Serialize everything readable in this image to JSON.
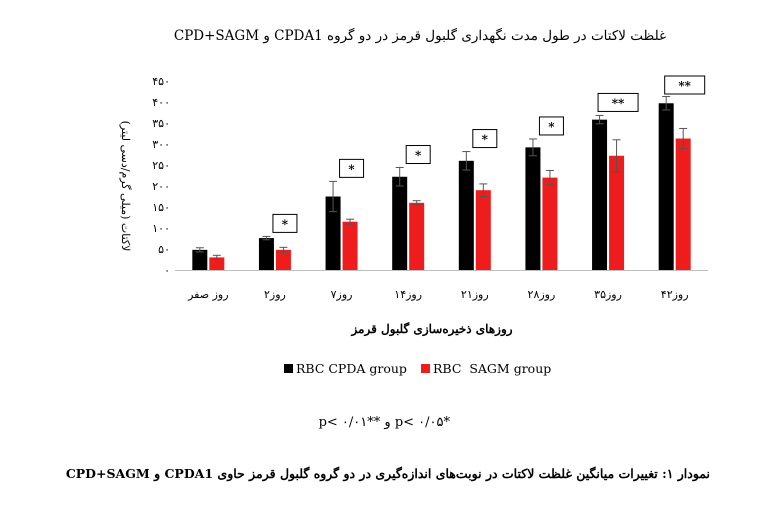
{
  "page": {
    "footnote": "*p< ۰/۰۵ و **p< ۰/۰۱",
    "caption": "نمودار ۱: تغییرات میانگین غلظت لاکتات در نوبت‌های اندازه‌گیری در دو گروه گلبول قرمز حاوی CPDA1 و CPD+SAGM"
  },
  "colors": {
    "cpda": "#000000",
    "sagm": "#ee1c1c",
    "axis": "#bfbfbf",
    "error_bar": "#555555"
  },
  "chart_data": {
    "type": "bar",
    "title": "غلظت لاکتات در طول مدت نگهداری گلبول قرمز در دو گروه CPDA1 و CPD+SAGM",
    "xlabel": "روزهای ذخیره‌سازی گلبول قرمز",
    "ylabel": "لاکتات (میلی گرم/دسی لیتر)",
    "ylim": [
      0,
      450
    ],
    "yticks": [
      0,
      50,
      100,
      150,
      200,
      250,
      300,
      350,
      400,
      450
    ],
    "ytick_labels": [
      "۰",
      "۵۰",
      "۱۰۰",
      "۱۵۰",
      "۲۰۰",
      "۲۵۰",
      "۳۰۰",
      "۳۵۰",
      "۴۰۰",
      "۴۵۰"
    ],
    "categories": [
      "روز صفر",
      "روز۲",
      "روز۷",
      "روز۱۴",
      "روز۲۱",
      "روز۲۸",
      "روز۳۵",
      "روز۴۲"
    ],
    "series": [
      {
        "name": "RBC CPDA group",
        "color": "#000000",
        "values": [
          48,
          76,
          175,
          222,
          260,
          292,
          358,
          397
        ],
        "errors": [
          5,
          4,
          36,
          22,
          22,
          20,
          10,
          16
        ]
      },
      {
        "name": "RBC  SAGM group",
        "color": "#ee1c1c",
        "values": [
          30,
          48,
          115,
          160,
          190,
          220,
          272,
          313
        ],
        "errors": [
          5,
          6,
          6,
          5,
          15,
          17,
          38,
          24
        ]
      }
    ],
    "significance": [
      "",
      "*",
      "*",
      "*",
      "*",
      "*",
      "**",
      "**"
    ],
    "legend_position": "bottom",
    "grid": false
  }
}
